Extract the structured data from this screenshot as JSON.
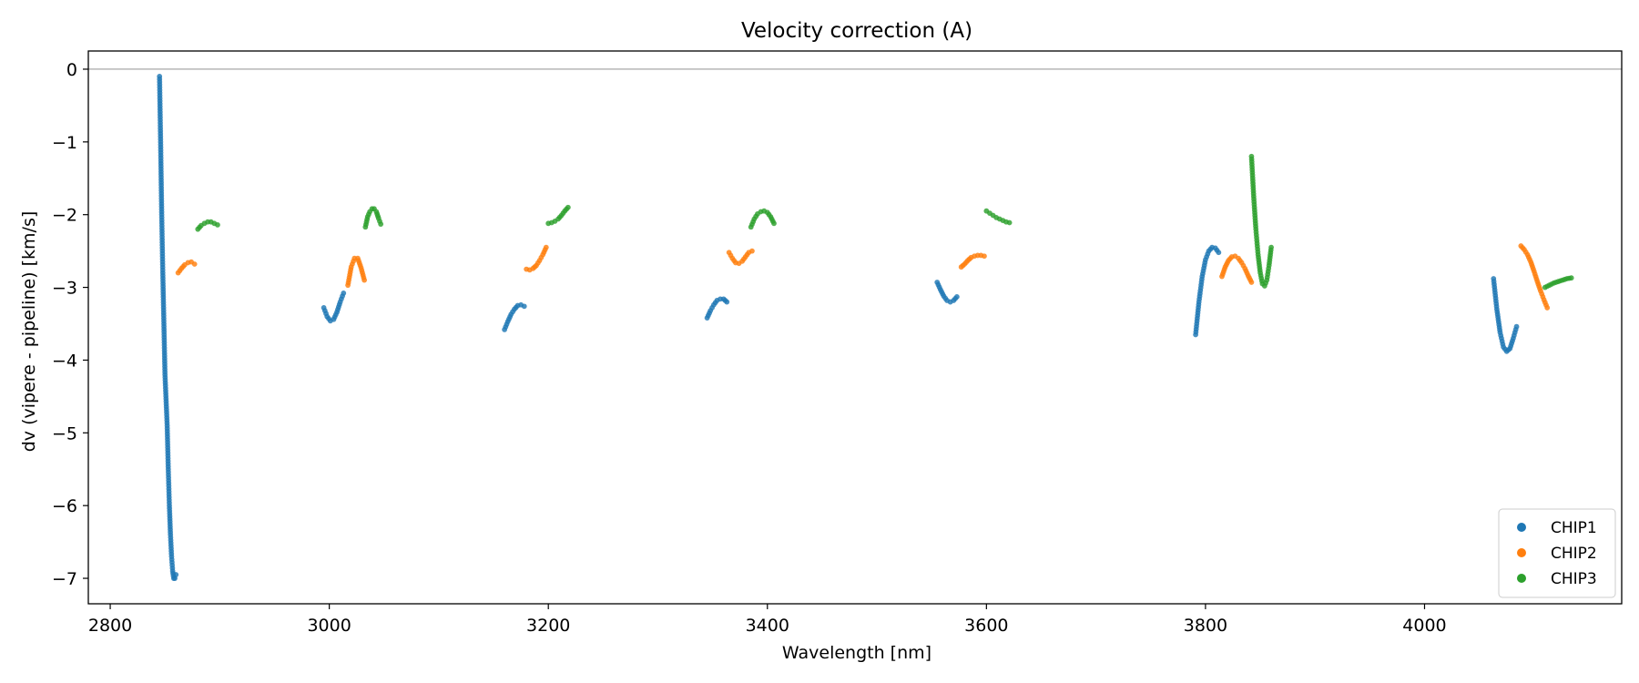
{
  "chart_data": {
    "type": "scatter",
    "title": "Velocity correction (A)",
    "xlabel": "Wavelength [nm]",
    "ylabel": "dv (vipere - pipeline) [km/s]",
    "xlim": [
      2780,
      4180
    ],
    "ylim": [
      -7.35,
      0.25
    ],
    "xticks": [
      2800,
      3000,
      3200,
      3400,
      3600,
      3800,
      4000
    ],
    "yticks": [
      0,
      -1,
      -2,
      -3,
      -4,
      -5,
      -6,
      -7
    ],
    "hline": 0,
    "legend_position": "lower-right",
    "colors": {
      "CHIP1": "#1f77b4",
      "CHIP2": "#ff7f0e",
      "CHIP3": "#2ca02c"
    },
    "series": [
      {
        "name": "CHIP1",
        "segments": [
          {
            "x": [
              2845,
              2846,
              2847,
              2848,
              2849,
              2850,
              2852,
              2853,
              2854,
              2855,
              2856,
              2857,
              2858,
              2859,
              2860
            ],
            "y": [
              -0.1,
              -1.0,
              -2.0,
              -2.8,
              -3.5,
              -4.2,
              -4.9,
              -5.5,
              -6.0,
              -6.4,
              -6.7,
              -6.9,
              -7.0,
              -7.0,
              -6.95
            ]
          },
          {
            "x": [
              2995,
              2998,
              3001,
              3004,
              3007,
              3010,
              3013
            ],
            "y": [
              -3.28,
              -3.4,
              -3.46,
              -3.44,
              -3.34,
              -3.2,
              -3.08
            ]
          },
          {
            "x": [
              3160,
              3163,
              3166,
              3169,
              3172,
              3175,
              3178
            ],
            "y": [
              -3.58,
              -3.47,
              -3.37,
              -3.3,
              -3.25,
              -3.24,
              -3.26
            ]
          },
          {
            "x": [
              3345,
              3348,
              3351,
              3354,
              3357,
              3360,
              3363
            ],
            "y": [
              -3.42,
              -3.32,
              -3.24,
              -3.18,
              -3.16,
              -3.16,
              -3.2
            ]
          },
          {
            "x": [
              3555,
              3558,
              3561,
              3564,
              3567,
              3570,
              3573
            ],
            "y": [
              -2.93,
              -3.03,
              -3.12,
              -3.18,
              -3.2,
              -3.18,
              -3.13
            ]
          },
          {
            "x": [
              3791,
              3794,
              3797,
              3800,
              3803,
              3806,
              3809,
              3812
            ],
            "y": [
              -3.65,
              -3.2,
              -2.85,
              -2.62,
              -2.5,
              -2.45,
              -2.46,
              -2.52
            ]
          },
          {
            "x": [
              4063,
              4066,
              4069,
              4072,
              4075,
              4078,
              4081,
              4084
            ],
            "y": [
              -2.88,
              -3.3,
              -3.62,
              -3.82,
              -3.88,
              -3.84,
              -3.7,
              -3.54
            ]
          }
        ]
      },
      {
        "name": "CHIP2",
        "segments": [
          {
            "x": [
              2862,
              2865,
              2868,
              2871,
              2874,
              2877
            ],
            "y": [
              -2.8,
              -2.74,
              -2.69,
              -2.66,
              -2.65,
              -2.68
            ]
          },
          {
            "x": [
              3017,
              3020,
              3023,
              3026,
              3029,
              3032
            ],
            "y": [
              -2.97,
              -2.72,
              -2.6,
              -2.6,
              -2.73,
              -2.9
            ]
          },
          {
            "x": [
              3180,
              3183,
              3186,
              3189,
              3192,
              3195,
              3198
            ],
            "y": [
              -2.75,
              -2.76,
              -2.74,
              -2.7,
              -2.63,
              -2.55,
              -2.45
            ]
          },
          {
            "x": [
              3365,
              3368,
              3371,
              3374,
              3377,
              3380,
              3383,
              3386
            ],
            "y": [
              -2.52,
              -2.6,
              -2.66,
              -2.67,
              -2.64,
              -2.58,
              -2.52,
              -2.5
            ]
          },
          {
            "x": [
              3577,
              3580,
              3583,
              3586,
              3589,
              3592,
              3595,
              3598
            ],
            "y": [
              -2.72,
              -2.68,
              -2.63,
              -2.59,
              -2.57,
              -2.56,
              -2.56,
              -2.57
            ]
          },
          {
            "x": [
              3815,
              3818,
              3821,
              3824,
              3827,
              3830,
              3833,
              3836,
              3839,
              3842
            ],
            "y": [
              -2.85,
              -2.72,
              -2.63,
              -2.58,
              -2.57,
              -2.6,
              -2.66,
              -2.74,
              -2.84,
              -2.93
            ]
          },
          {
            "x": [
              4088,
              4091,
              4094,
              4097,
              4100,
              4103,
              4106,
              4109,
              4112
            ],
            "y": [
              -2.43,
              -2.48,
              -2.55,
              -2.65,
              -2.78,
              -2.92,
              -3.05,
              -3.17,
              -3.28
            ]
          }
        ]
      },
      {
        "name": "CHIP3",
        "segments": [
          {
            "x": [
              2880,
              2883,
              2886,
              2889,
              2892,
              2895,
              2898
            ],
            "y": [
              -2.2,
              -2.15,
              -2.12,
              -2.1,
              -2.1,
              -2.12,
              -2.14
            ]
          },
          {
            "x": [
              3033,
              3035,
              3037,
              3039,
              3041,
              3043,
              3045,
              3047
            ],
            "y": [
              -2.17,
              -2.03,
              -1.96,
              -1.92,
              -1.92,
              -1.96,
              -2.05,
              -2.13
            ]
          },
          {
            "x": [
              3200,
              3203,
              3206,
              3209,
              3212,
              3215,
              3218
            ],
            "y": [
              -2.12,
              -2.11,
              -2.09,
              -2.06,
              -2.01,
              -1.95,
              -1.9
            ]
          },
          {
            "x": [
              3385,
              3388,
              3391,
              3394,
              3397,
              3400,
              3403,
              3406
            ],
            "y": [
              -2.17,
              -2.06,
              -1.99,
              -1.96,
              -1.95,
              -1.97,
              -2.03,
              -2.12
            ]
          },
          {
            "x": [
              3600,
              3603,
              3606,
              3609,
              3612,
              3615,
              3618,
              3621
            ],
            "y": [
              -1.95,
              -1.98,
              -2.01,
              -2.04,
              -2.06,
              -2.08,
              -2.1,
              -2.11
            ]
          },
          {
            "x": [
              3842,
              3844,
              3846,
              3848,
              3850,
              3852,
              3854,
              3856,
              3858,
              3860
            ],
            "y": [
              -1.2,
              -1.75,
              -2.2,
              -2.55,
              -2.8,
              -2.95,
              -2.98,
              -2.9,
              -2.7,
              -2.45
            ]
          },
          {
            "x": [
              4110,
              4114,
              4118,
              4122,
              4126,
              4130,
              4134
            ],
            "y": [
              -3.0,
              -2.97,
              -2.94,
              -2.92,
              -2.9,
              -2.88,
              -2.87
            ]
          }
        ]
      }
    ]
  }
}
